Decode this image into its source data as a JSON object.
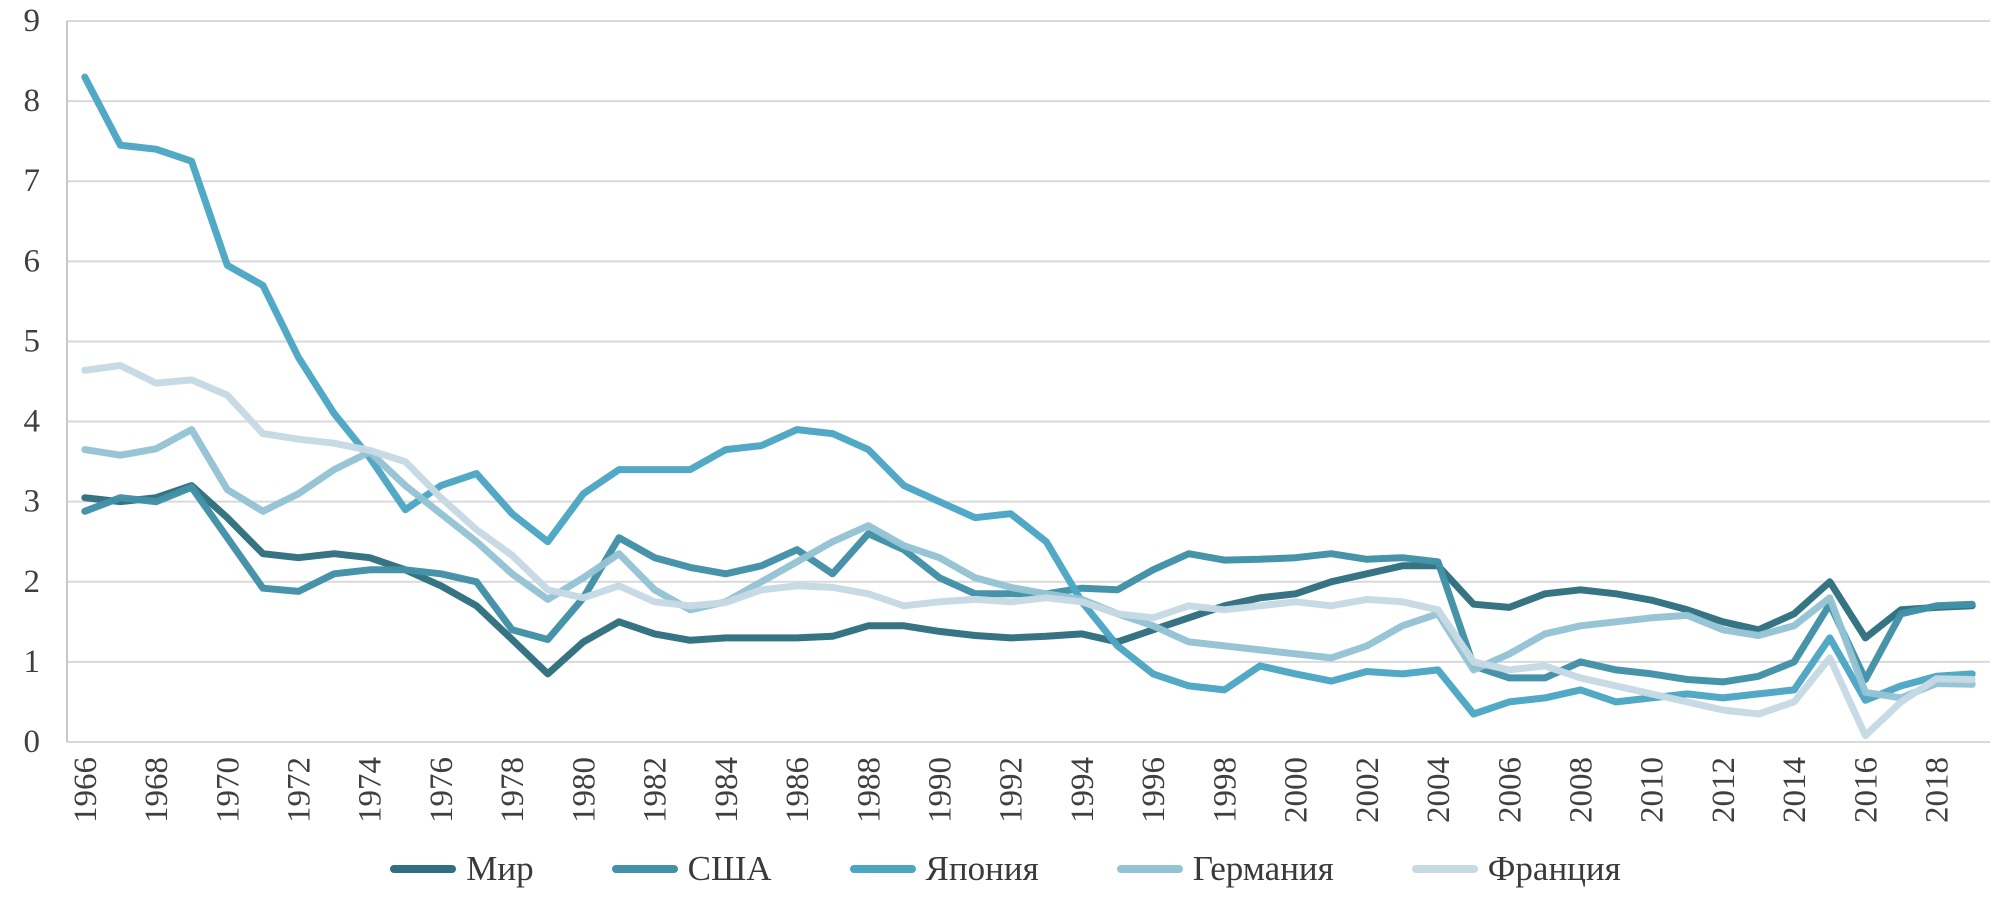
{
  "chart_data": {
    "type": "line",
    "title": "",
    "xlabel": "",
    "ylabel": "",
    "ylim": [
      0,
      9
    ],
    "y_ticks": [
      0,
      1,
      2,
      3,
      4,
      5,
      6,
      7,
      8,
      9
    ],
    "x": [
      1966,
      1967,
      1968,
      1969,
      1970,
      1971,
      1972,
      1973,
      1974,
      1975,
      1976,
      1977,
      1978,
      1979,
      1980,
      1981,
      1982,
      1983,
      1984,
      1985,
      1986,
      1987,
      1988,
      1989,
      1990,
      1991,
      1992,
      1993,
      1994,
      1995,
      1996,
      1997,
      1998,
      1999,
      2000,
      2001,
      2002,
      2003,
      2004,
      2005,
      2006,
      2007,
      2008,
      2009,
      2010,
      2011,
      2012,
      2013,
      2014,
      2015,
      2016,
      2017,
      2018,
      2019
    ],
    "x_tick_labels": [
      "1966",
      "1968",
      "1970",
      "1972",
      "1974",
      "1976",
      "1978",
      "1980",
      "1982",
      "1984",
      "1986",
      "1988",
      "1990",
      "1992",
      "1994",
      "1996",
      "1998",
      "2000",
      "2002",
      "2004",
      "2006",
      "2008",
      "2010",
      "2012",
      "2014",
      "2016",
      "2018"
    ],
    "grid": "horizontal",
    "legend_position": "bottom",
    "series": [
      {
        "key": "mir",
        "name": "Мир",
        "color": "#2F6F80",
        "values": [
          3.05,
          3.0,
          3.05,
          3.2,
          2.8,
          2.35,
          2.3,
          2.35,
          2.3,
          2.15,
          1.95,
          1.7,
          1.28,
          0.85,
          1.25,
          1.5,
          1.35,
          1.27,
          1.3,
          1.3,
          1.3,
          1.32,
          1.45,
          1.45,
          1.38,
          1.33,
          1.3,
          1.32,
          1.35,
          1.25,
          1.4,
          1.55,
          1.7,
          1.8,
          1.85,
          2.0,
          2.1,
          2.2,
          2.2,
          1.72,
          1.68,
          1.85,
          1.9,
          1.85,
          1.77,
          1.65,
          1.5,
          1.4,
          1.6,
          2.0,
          1.3,
          1.65,
          1.68,
          1.7
        ]
      },
      {
        "key": "usa",
        "name": "США",
        "color": "#4191A7",
        "values": [
          2.88,
          3.05,
          3.0,
          3.18,
          2.55,
          1.92,
          1.88,
          2.1,
          2.15,
          2.15,
          2.1,
          2.0,
          1.4,
          1.28,
          1.8,
          2.55,
          2.3,
          2.18,
          2.1,
          2.2,
          2.4,
          2.1,
          2.6,
          2.4,
          2.05,
          1.85,
          1.85,
          1.85,
          1.92,
          1.9,
          2.15,
          2.35,
          2.27,
          2.28,
          2.3,
          2.35,
          2.28,
          2.3,
          2.25,
          0.95,
          0.8,
          0.8,
          1.0,
          0.9,
          0.85,
          0.78,
          0.75,
          0.82,
          1.0,
          1.72,
          0.78,
          1.6,
          1.7,
          1.72
        ]
      },
      {
        "key": "japan",
        "name": "Япония",
        "color": "#4BA6C3",
        "values": [
          8.3,
          7.45,
          7.4,
          7.25,
          5.95,
          5.7,
          4.8,
          4.1,
          3.55,
          2.9,
          3.2,
          3.35,
          2.85,
          2.5,
          3.1,
          3.4,
          3.4,
          3.4,
          3.65,
          3.7,
          3.9,
          3.85,
          3.65,
          3.2,
          3.0,
          2.8,
          2.85,
          2.5,
          1.75,
          1.2,
          0.85,
          0.7,
          0.65,
          0.95,
          0.85,
          0.76,
          0.88,
          0.85,
          0.9,
          0.35,
          0.5,
          0.55,
          0.65,
          0.5,
          0.55,
          0.6,
          0.55,
          0.6,
          0.65,
          1.3,
          0.52,
          0.7,
          0.82,
          0.85
        ]
      },
      {
        "key": "germany",
        "name": "Германия",
        "color": "#94C3D4",
        "values": [
          3.65,
          3.58,
          3.66,
          3.9,
          3.15,
          2.88,
          3.1,
          3.4,
          3.62,
          3.2,
          2.85,
          2.5,
          2.1,
          1.78,
          2.05,
          2.35,
          1.9,
          1.65,
          1.75,
          2.0,
          2.25,
          2.5,
          2.7,
          2.45,
          2.3,
          2.05,
          1.93,
          1.85,
          1.78,
          1.6,
          1.45,
          1.25,
          1.2,
          1.15,
          1.1,
          1.05,
          1.2,
          1.45,
          1.6,
          0.9,
          1.1,
          1.35,
          1.45,
          1.5,
          1.55,
          1.58,
          1.4,
          1.33,
          1.45,
          1.8,
          0.62,
          0.55,
          0.73,
          0.72
        ]
      },
      {
        "key": "france",
        "name": "Франция",
        "color": "#C6DAE4",
        "values": [
          4.64,
          4.7,
          4.48,
          4.52,
          4.33,
          3.85,
          3.78,
          3.73,
          3.64,
          3.5,
          3.05,
          2.65,
          2.33,
          1.9,
          1.8,
          1.95,
          1.75,
          1.7,
          1.74,
          1.9,
          1.95,
          1.93,
          1.85,
          1.7,
          1.75,
          1.78,
          1.75,
          1.8,
          1.75,
          1.6,
          1.55,
          1.7,
          1.65,
          1.7,
          1.75,
          1.7,
          1.78,
          1.75,
          1.65,
          1.0,
          0.9,
          0.95,
          0.8,
          0.7,
          0.6,
          0.5,
          0.4,
          0.35,
          0.5,
          1.05,
          0.08,
          0.5,
          0.79,
          0.78
        ]
      }
    ]
  },
  "style": {
    "grid_color": "#D9D9D9",
    "axis_color": "#C9C9C9",
    "tick_text_color": "#3f3f3f",
    "background": "#ffffff"
  }
}
